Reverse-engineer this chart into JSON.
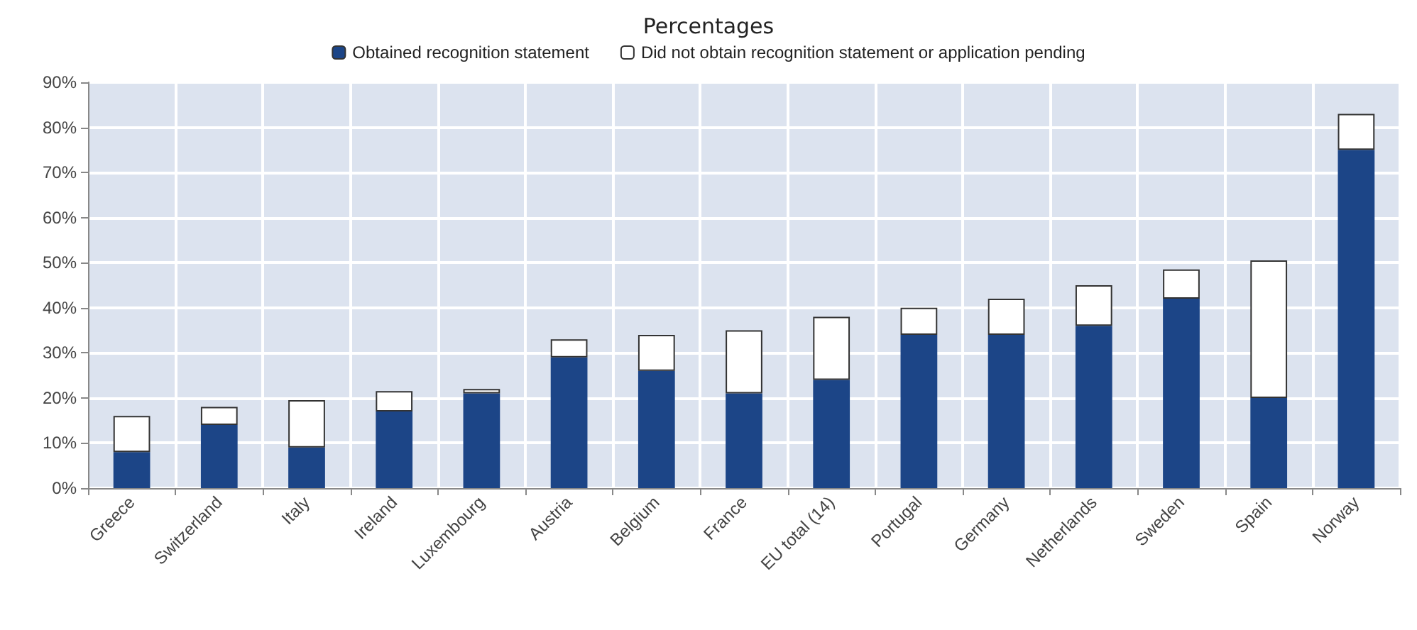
{
  "chart_data": {
    "type": "bar",
    "title": "Percentages",
    "stacked": true,
    "legend": "top",
    "grid": true,
    "ylim": [
      0,
      90
    ],
    "yticks": [
      {
        "value": 0,
        "label": "0%"
      },
      {
        "value": 10,
        "label": "10%"
      },
      {
        "value": 20,
        "label": "20%"
      },
      {
        "value": 30,
        "label": "30%"
      },
      {
        "value": 40,
        "label": "40%"
      },
      {
        "value": 50,
        "label": "50%"
      },
      {
        "value": 60,
        "label": "60%"
      },
      {
        "value": 70,
        "label": "70%"
      },
      {
        "value": 80,
        "label": "80%"
      },
      {
        "value": 90,
        "label": "90%"
      }
    ],
    "categories": [
      "Greece",
      "Switzerland",
      "Italy",
      "Ireland",
      "Luxembourg",
      "Austria",
      "Belgium",
      "France",
      "EU total (14)",
      "Portugal",
      "Germany",
      "Netherlands",
      "Sweden",
      "Spain",
      "Norway"
    ],
    "series": [
      {
        "name": "Obtained recognition statement",
        "color": "#1c4587",
        "values": [
          8,
          14,
          9,
          17,
          21,
          29,
          26,
          21,
          24,
          34,
          34,
          36,
          42,
          20,
          75
        ]
      },
      {
        "name": "Did not obtain recognition statement or application pending",
        "color": "#ffffff",
        "values": [
          8,
          4,
          10.5,
          4.5,
          1,
          4,
          8,
          14,
          14,
          6,
          8,
          9,
          6.5,
          30.5,
          8
        ]
      }
    ]
  }
}
